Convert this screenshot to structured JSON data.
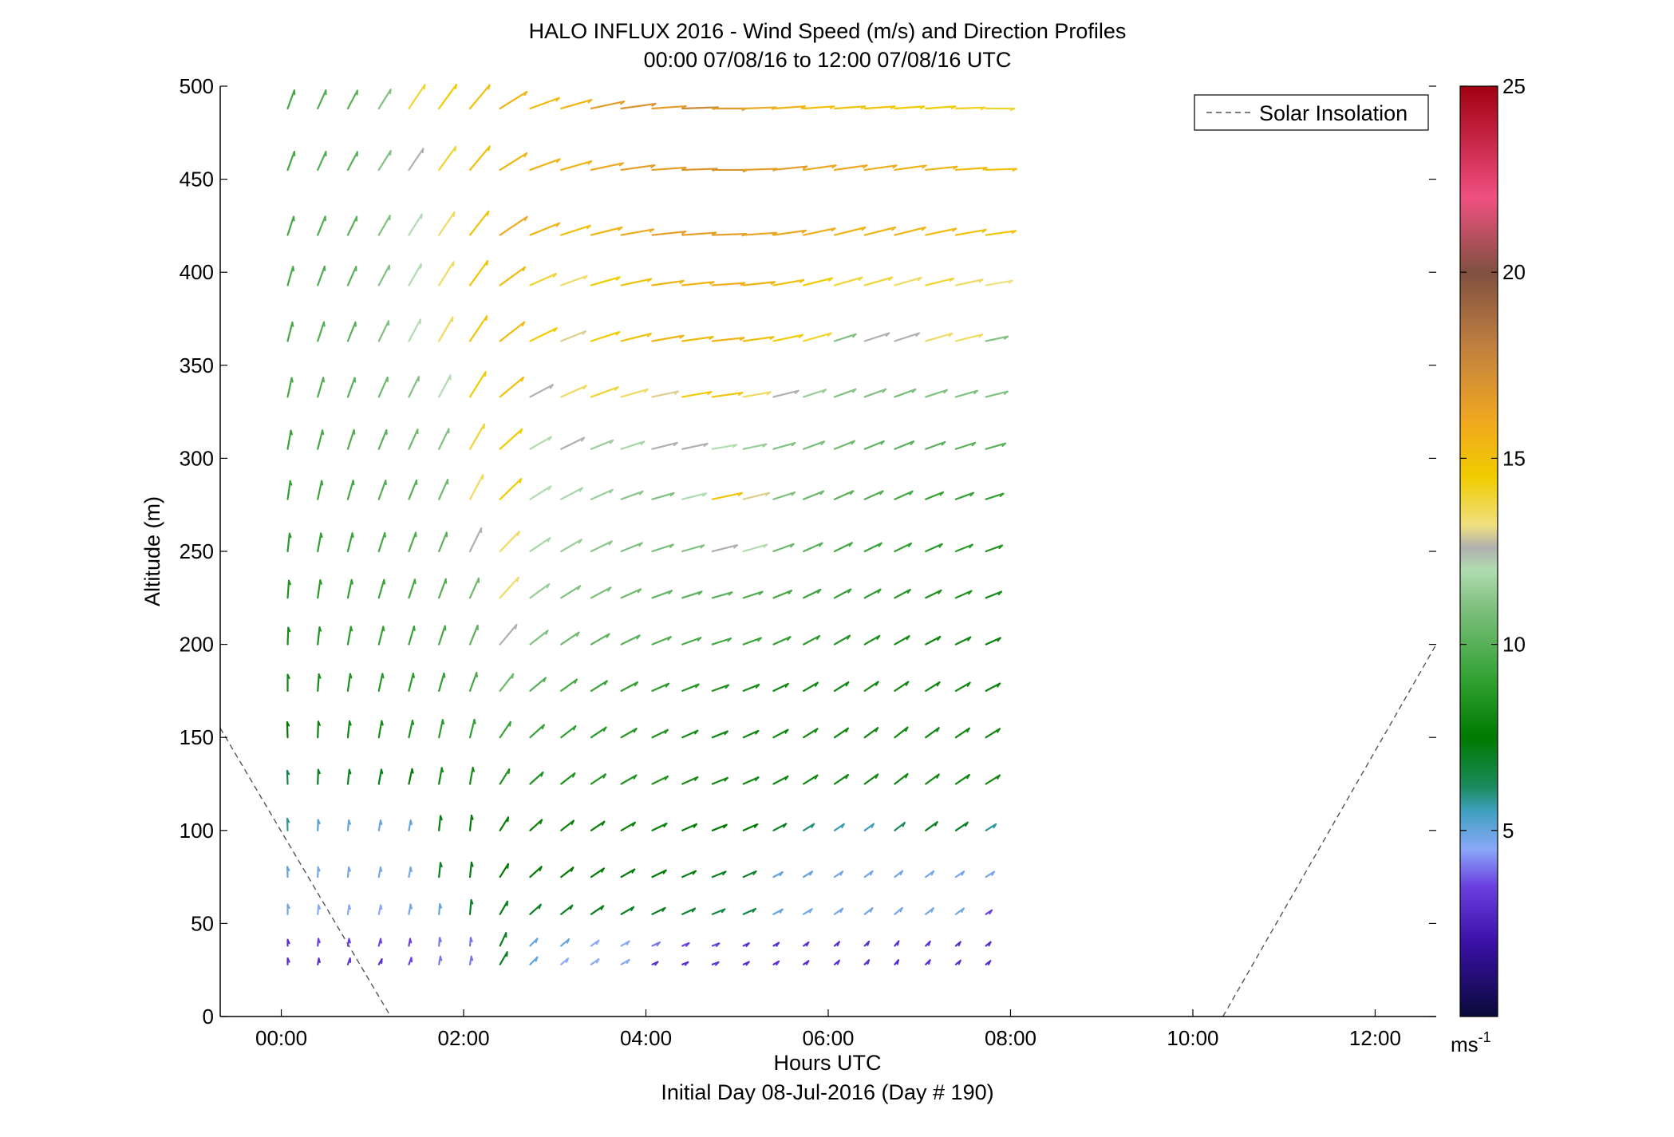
{
  "chart_data": {
    "type": "quiver",
    "title_line1": "HALO INFLUX 2016 - Wind Speed (m/s) and Direction Profiles",
    "title_line2": "00:00 07/08/16 to 12:00 07/08/16  UTC",
    "xlabel": "Hours UTC",
    "xlabel_sub": "Initial Day 08-Jul-2016 (Day # 190)",
    "ylabel": "Altitude (m)",
    "xlim": [
      -0.67,
      12.67
    ],
    "ylim": [
      0,
      500
    ],
    "x_ticks": [
      {
        "value": 0,
        "label": "00:00"
      },
      {
        "value": 2,
        "label": "02:00"
      },
      {
        "value": 4,
        "label": "04:00"
      },
      {
        "value": 6,
        "label": "06:00"
      },
      {
        "value": 8,
        "label": "08:00"
      },
      {
        "value": 10,
        "label": "10:00"
      },
      {
        "value": 12,
        "label": "12:00"
      }
    ],
    "y_ticks": [
      0,
      50,
      100,
      150,
      200,
      250,
      300,
      350,
      400,
      450,
      500
    ],
    "legend": {
      "label": "Solar Insolation",
      "position": "top-right",
      "style": "dashed",
      "color": "#555555"
    },
    "colorbar": {
      "range": [
        0,
        25
      ],
      "ticks": [
        5,
        10,
        15,
        20,
        25
      ],
      "unit_label": "ms",
      "unit_exponent": "-1",
      "stops": [
        {
          "value": 0,
          "color": "#0a0a3a"
        },
        {
          "value": 2,
          "color": "#3a10a8"
        },
        {
          "value": 3.5,
          "color": "#6a40e0"
        },
        {
          "value": 4.5,
          "color": "#8aa8f8"
        },
        {
          "value": 5.5,
          "color": "#40a0c0"
        },
        {
          "value": 6.2,
          "color": "#1a8a5a"
        },
        {
          "value": 7.5,
          "color": "#007a00"
        },
        {
          "value": 9,
          "color": "#30a030"
        },
        {
          "value": 11,
          "color": "#80c080"
        },
        {
          "value": 12,
          "color": "#b0dcb0"
        },
        {
          "value": 12.6,
          "color": "#b0b0b0"
        },
        {
          "value": 13.2,
          "color": "#f0e080"
        },
        {
          "value": 14.5,
          "color": "#f0cc00"
        },
        {
          "value": 16,
          "color": "#f0a820"
        },
        {
          "value": 18,
          "color": "#c08040"
        },
        {
          "value": 20,
          "color": "#805040"
        },
        {
          "value": 22,
          "color": "#f05080"
        },
        {
          "value": 25,
          "color": "#a00010"
        }
      ]
    },
    "solar_insolation": [
      {
        "x": [
          -0.67,
          1.2
        ],
        "y": [
          155,
          0
        ]
      },
      {
        "x": [
          10.33,
          12.67
        ],
        "y": [
          0,
          200
        ]
      }
    ],
    "arrow_times": [
      0.07,
      0.4,
      0.73,
      1.07,
      1.4,
      1.73,
      2.07,
      2.4,
      2.73,
      3.07,
      3.4,
      3.73,
      4.07,
      4.4,
      4.73,
      5.07,
      5.4,
      5.73,
      6.07,
      6.4,
      6.73,
      7.07,
      7.4,
      7.73
    ],
    "arrow_altitudes": [
      28,
      38,
      55,
      75,
      100,
      125,
      150,
      175,
      200,
      225,
      250,
      278,
      305,
      333,
      363,
      393,
      420,
      455,
      488
    ],
    "wind_rows": [
      {
        "alt": 28,
        "speed": [
          3.0,
          3.0,
          3.2,
          3.0,
          3.5,
          4.0,
          4.0,
          7.0,
          5.0,
          4.5,
          4.5,
          4.5,
          3.0,
          3.0,
          3.2,
          3.0,
          3.0,
          3.0,
          3.0,
          3.0,
          2.8,
          3.0,
          3.0,
          2.8
        ],
        "dir": [
          180,
          190,
          200,
          210,
          200,
          190,
          190,
          210,
          225,
          230,
          235,
          240,
          245,
          248,
          250,
          245,
          240,
          235,
          230,
          225,
          220,
          225,
          230,
          232
        ]
      },
      {
        "alt": 38,
        "speed": [
          3.0,
          3.5,
          3.5,
          3.5,
          3.5,
          4.0,
          4.0,
          7.0,
          5.0,
          5.0,
          4.5,
          4.5,
          4.0,
          3.5,
          3.5,
          3.0,
          3.0,
          3.0,
          3.0,
          3.0,
          3.0,
          3.0,
          3.0,
          3.0
        ],
        "dir": [
          180,
          185,
          190,
          195,
          190,
          185,
          185,
          205,
          225,
          230,
          235,
          240,
          245,
          248,
          250,
          245,
          240,
          235,
          230,
          225,
          220,
          225,
          230,
          232
        ]
      },
      {
        "alt": 55,
        "speed": [
          4.8,
          4.5,
          4.5,
          4.5,
          4.8,
          5.0,
          7.0,
          7.2,
          7.0,
          7.0,
          7.2,
          7.0,
          7.0,
          6.8,
          6.5,
          6.5,
          5.0,
          4.8,
          4.8,
          4.8,
          4.8,
          4.8,
          4.8,
          3.5
        ],
        "dir": [
          180,
          185,
          188,
          192,
          190,
          185,
          185,
          210,
          228,
          232,
          236,
          240,
          244,
          246,
          248,
          246,
          242,
          238,
          235,
          232,
          230,
          232,
          234,
          236
        ]
      },
      {
        "alt": 75,
        "speed": [
          5.0,
          4.8,
          4.8,
          4.8,
          4.8,
          7.0,
          7.2,
          7.5,
          7.5,
          7.5,
          7.5,
          7.5,
          7.5,
          7.2,
          7.0,
          6.8,
          5.0,
          5.0,
          4.8,
          4.8,
          4.8,
          4.8,
          4.8,
          4.8
        ],
        "dir": [
          178,
          182,
          186,
          190,
          190,
          186,
          186,
          212,
          228,
          232,
          236,
          240,
          244,
          246,
          248,
          246,
          242,
          238,
          236,
          234,
          232,
          234,
          236,
          238
        ]
      },
      {
        "alt": 100,
        "speed": [
          5.8,
          5.2,
          5.0,
          5.0,
          5.0,
          7.2,
          7.4,
          7.6,
          7.8,
          7.8,
          7.8,
          7.8,
          7.8,
          7.6,
          7.5,
          7.5,
          7.0,
          6.0,
          5.6,
          5.5,
          6.2,
          7.0,
          7.0,
          5.8
        ],
        "dir": [
          178,
          182,
          186,
          190,
          190,
          186,
          186,
          212,
          228,
          232,
          236,
          240,
          244,
          246,
          248,
          246,
          242,
          238,
          236,
          234,
          232,
          234,
          236,
          238
        ]
      },
      {
        "alt": 125,
        "speed": [
          6.5,
          7.0,
          7.0,
          7.2,
          7.5,
          8.0,
          8.2,
          8.5,
          8.5,
          8.5,
          8.5,
          8.5,
          8.5,
          8.2,
          8.0,
          8.0,
          8.0,
          8.0,
          8.0,
          8.0,
          8.0,
          8.0,
          8.0,
          8.0
        ],
        "dir": [
          178,
          182,
          186,
          190,
          192,
          190,
          190,
          212,
          228,
          232,
          236,
          240,
          244,
          246,
          248,
          246,
          242,
          238,
          236,
          234,
          232,
          234,
          236,
          238
        ]
      },
      {
        "alt": 150,
        "speed": [
          7.5,
          7.8,
          8.0,
          8.2,
          8.5,
          8.8,
          9.0,
          9.2,
          9.2,
          9.0,
          8.8,
          8.6,
          8.4,
          8.2,
          8.0,
          8.0,
          8.0,
          8.0,
          8.0,
          8.0,
          8.0,
          8.0,
          8.0,
          8.0
        ],
        "dir": [
          178,
          182,
          186,
          190,
          192,
          192,
          194,
          214,
          228,
          232,
          236,
          240,
          244,
          246,
          248,
          246,
          242,
          238,
          236,
          234,
          232,
          234,
          236,
          238
        ]
      },
      {
        "alt": 175,
        "speed": [
          8.0,
          8.2,
          8.4,
          8.6,
          8.8,
          9.0,
          9.5,
          10.5,
          10.0,
          9.5,
          9.2,
          9.0,
          8.8,
          8.6,
          8.4,
          8.2,
          8.0,
          8.0,
          8.0,
          8.0,
          8.0,
          8.0,
          8.0,
          7.8
        ],
        "dir": [
          180,
          184,
          188,
          192,
          194,
          196,
          200,
          218,
          230,
          234,
          238,
          242,
          246,
          248,
          250,
          248,
          244,
          240,
          238,
          236,
          236,
          238,
          240,
          242
        ]
      },
      {
        "alt": 200,
        "speed": [
          8.2,
          8.5,
          8.8,
          9.0,
          9.2,
          9.5,
          10.0,
          12.6,
          11.0,
          10.5,
          10.2,
          10.0,
          9.8,
          9.6,
          9.5,
          9.2,
          9.0,
          8.8,
          8.6,
          8.4,
          8.2,
          8.0,
          8.0,
          7.8
        ],
        "dir": [
          182,
          186,
          190,
          194,
          196,
          198,
          202,
          220,
          232,
          236,
          240,
          244,
          248,
          250,
          252,
          250,
          246,
          242,
          240,
          240,
          240,
          242,
          244,
          246
        ]
      },
      {
        "alt": 225,
        "speed": [
          8.5,
          8.8,
          9.0,
          9.2,
          9.5,
          9.8,
          10.5,
          13.5,
          11.5,
          11.0,
          10.8,
          10.5,
          10.2,
          10.0,
          10.0,
          9.8,
          9.5,
          9.2,
          9.0,
          8.8,
          8.6,
          8.4,
          8.4,
          8.2
        ],
        "dir": [
          184,
          188,
          192,
          196,
          198,
          200,
          204,
          222,
          234,
          238,
          242,
          246,
          250,
          252,
          254,
          252,
          248,
          244,
          242,
          242,
          242,
          244,
          246,
          248
        ]
      },
      {
        "alt": 250,
        "speed": [
          8.8,
          9.0,
          9.2,
          9.5,
          9.8,
          10.0,
          12.6,
          13.5,
          11.8,
          11.5,
          11.2,
          11.0,
          10.8,
          11.0,
          12.6,
          12.0,
          10.5,
          10.0,
          9.5,
          9.2,
          9.0,
          8.8,
          8.8,
          8.5
        ],
        "dir": [
          186,
          190,
          194,
          198,
          200,
          202,
          206,
          224,
          236,
          240,
          244,
          248,
          252,
          254,
          256,
          254,
          250,
          246,
          244,
          244,
          244,
          246,
          248,
          250
        ]
      },
      {
        "alt": 278,
        "speed": [
          9.0,
          9.2,
          9.5,
          9.8,
          10.0,
          10.5,
          13.5,
          14.5,
          12.0,
          11.8,
          11.5,
          11.2,
          11.0,
          12.0,
          14.8,
          13.0,
          11.0,
          10.5,
          10.0,
          9.8,
          9.5,
          9.2,
          9.2,
          9.0
        ],
        "dir": [
          188,
          192,
          196,
          200,
          202,
          204,
          208,
          226,
          238,
          242,
          246,
          250,
          254,
          256,
          258,
          256,
          252,
          248,
          246,
          246,
          246,
          248,
          250,
          252
        ]
      },
      {
        "alt": 305,
        "speed": [
          9.2,
          9.5,
          9.8,
          10.0,
          10.5,
          11.0,
          14.0,
          14.5,
          12.0,
          12.6,
          11.5,
          11.8,
          12.6,
          12.6,
          12.0,
          11.5,
          11.0,
          10.8,
          10.5,
          10.2,
          10.0,
          10.0,
          10.0,
          10.0
        ],
        "dir": [
          190,
          194,
          198,
          202,
          204,
          206,
          210,
          228,
          240,
          244,
          248,
          252,
          256,
          258,
          260,
          258,
          254,
          250,
          248,
          248,
          248,
          250,
          252,
          254
        ]
      },
      {
        "alt": 333,
        "speed": [
          9.5,
          9.8,
          10.0,
          10.5,
          11.0,
          12.0,
          14.5,
          15.0,
          12.6,
          13.5,
          14.0,
          13.5,
          13.0,
          14.5,
          14.8,
          13.5,
          12.6,
          11.5,
          11.0,
          11.0,
          10.8,
          11.0,
          11.0,
          11.0
        ],
        "dir": [
          192,
          196,
          200,
          204,
          206,
          208,
          212,
          230,
          242,
          246,
          250,
          254,
          258,
          260,
          262,
          260,
          256,
          252,
          250,
          250,
          250,
          252,
          254,
          256
        ]
      },
      {
        "alt": 363,
        "speed": [
          9.5,
          9.8,
          10.0,
          11.0,
          12.0,
          13.5,
          14.8,
          15.2,
          14.5,
          13.0,
          14.5,
          15.0,
          15.5,
          15.2,
          15.5,
          15.0,
          14.5,
          14.0,
          11.0,
          12.6,
          12.6,
          13.5,
          13.5,
          11.0
        ],
        "dir": [
          194,
          198,
          202,
          206,
          208,
          210,
          214,
          232,
          244,
          248,
          252,
          256,
          260,
          262,
          264,
          262,
          258,
          254,
          252,
          252,
          252,
          254,
          256,
          258
        ]
      },
      {
        "alt": 393,
        "speed": [
          9.5,
          9.8,
          10.0,
          11.0,
          12.0,
          13.5,
          14.8,
          15.2,
          14.0,
          13.5,
          14.5,
          15.0,
          15.5,
          15.5,
          15.8,
          15.5,
          15.0,
          14.5,
          14.0,
          14.0,
          13.5,
          14.0,
          13.5,
          13.2
        ],
        "dir": [
          196,
          200,
          204,
          208,
          210,
          212,
          216,
          234,
          246,
          250,
          254,
          258,
          262,
          264,
          266,
          264,
          260,
          256,
          254,
          254,
          254,
          256,
          258,
          260
        ]
      },
      {
        "alt": 420,
        "speed": [
          9.5,
          9.8,
          10.0,
          11.0,
          12.0,
          13.5,
          14.8,
          16.0,
          15.5,
          15.0,
          15.5,
          16.0,
          16.5,
          16.5,
          16.5,
          16.2,
          16.0,
          15.8,
          15.5,
          15.5,
          15.5,
          15.2,
          15.0,
          14.8
        ],
        "dir": [
          198,
          202,
          206,
          210,
          212,
          214,
          218,
          236,
          248,
          252,
          256,
          260,
          264,
          266,
          268,
          266,
          262,
          258,
          256,
          256,
          256,
          258,
          260,
          262
        ]
      },
      {
        "alt": 455,
        "speed": [
          9.5,
          9.8,
          10.0,
          11.0,
          12.6,
          14.0,
          15.0,
          15.5,
          15.5,
          15.5,
          16.0,
          16.5,
          16.5,
          17.0,
          17.0,
          16.5,
          16.5,
          16.0,
          16.0,
          15.8,
          15.5,
          15.5,
          15.2,
          15.0
        ],
        "dir": [
          200,
          204,
          208,
          212,
          214,
          216,
          220,
          238,
          250,
          254,
          258,
          262,
          266,
          268,
          270,
          268,
          264,
          262,
          262,
          262,
          262,
          264,
          266,
          268
        ]
      },
      {
        "alt": 488,
        "speed": [
          9.5,
          9.8,
          10.0,
          11.0,
          14.0,
          14.5,
          15.0,
          15.5,
          15.2,
          15.5,
          16.5,
          17.0,
          16.5,
          17.5,
          16.5,
          16.0,
          15.5,
          15.0,
          15.0,
          14.8,
          14.5,
          14.5,
          14.2,
          14.0
        ],
        "dir": [
          200,
          204,
          208,
          212,
          214,
          216,
          220,
          238,
          250,
          254,
          258,
          262,
          266,
          268,
          270,
          268,
          266,
          266,
          266,
          266,
          266,
          266,
          268,
          270
        ]
      }
    ]
  }
}
